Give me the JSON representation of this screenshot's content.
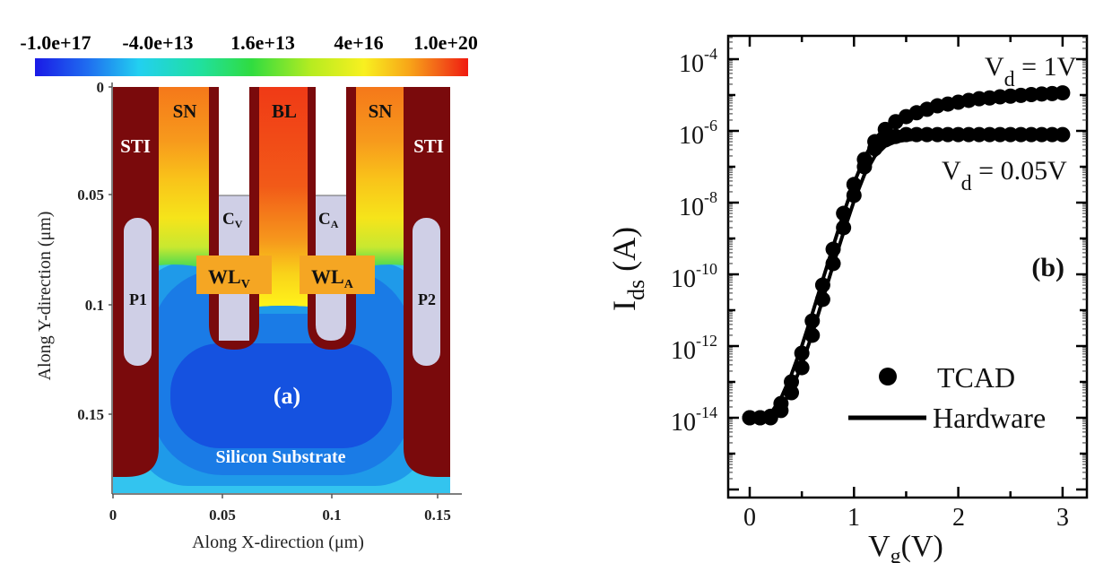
{
  "chart_data": [
    {
      "type": "heatmap",
      "panel_label": "(a)",
      "xlabel": "Along X-direction (μm)",
      "ylabel": "Along Y-direction (μm)",
      "xticks": [
        "0",
        "0.05",
        "0.1",
        "0.15"
      ],
      "yticks": [
        "0",
        "0.05",
        "0.1",
        "0.15"
      ],
      "xlim": [
        0,
        0.155
      ],
      "ylim": [
        0.186,
        0
      ],
      "colorbar": {
        "ticks": [
          "-1.0e+17",
          "-4.0e+13",
          "1.6e+13",
          "4e+16",
          "1.0e+20"
        ],
        "colors": [
          "#1a1ae6",
          "#1f8cf0",
          "#22e0f0",
          "#22e060",
          "#b8ec20",
          "#f8f020",
          "#f8b818",
          "#f26c18",
          "#f02010"
        ]
      },
      "regions": {
        "sti_left": "STI",
        "sti_right": "STI",
        "sn_left": "SN",
        "sn_right": "SN",
        "bl": "BL",
        "cv": "C",
        "cv_sub": "V",
        "ca": "C",
        "ca_sub": "A",
        "wlv": "WL",
        "wlv_sub": "V",
        "wla": "WL",
        "wla_sub": "A",
        "p1": "P1",
        "p2": "P2",
        "substrate": "Silicon Substrate"
      }
    },
    {
      "type": "scatter",
      "panel_label": "(b)",
      "xlabel": "V",
      "xlabel_sub": "g",
      "xlabel_unit": "(V)",
      "ylabel": "I",
      "ylabel_sub": "ds",
      "ylabel_unit": " (A)",
      "xlim": [
        -0.2,
        3.2
      ],
      "ylim": [
        6.3e-17,
        0.00045
      ],
      "yscale": "log",
      "xticks": [
        "0",
        "1",
        "2",
        "3"
      ],
      "yticks": [
        {
          "base": "10",
          "exp": "-4"
        },
        {
          "base": "10",
          "exp": "-6"
        },
        {
          "base": "10",
          "exp": "-8"
        },
        {
          "base": "10",
          "exp": "-10"
        },
        {
          "base": "10",
          "exp": "-12"
        },
        {
          "base": "10",
          "exp": "-14"
        }
      ],
      "annotations": {
        "vd1": {
          "v": "V",
          "sub": "d",
          "rest": " = 1V"
        },
        "vd005": {
          "v": "V",
          "sub": "d",
          "rest": " = 0.05V"
        }
      },
      "legend": {
        "placement": "bottom-right",
        "tcad": "TCAD",
        "hardware": "Hardware"
      },
      "x": [
        0,
        0.1,
        0.2,
        0.3,
        0.4,
        0.5,
        0.6,
        0.7,
        0.8,
        0.9,
        1.0,
        1.1,
        1.2,
        1.3,
        1.4,
        1.5,
        1.6,
        1.7,
        1.8,
        1.9,
        2.0,
        2.1,
        2.2,
        2.3,
        2.4,
        2.5,
        2.6,
        2.7,
        2.8,
        2.9,
        3.0
      ],
      "series": [
        {
          "kind": "TCAD",
          "condition": "Vd = 1V",
          "values": [
            1e-14,
            1e-14,
            1.1e-14,
            2.5e-14,
            1e-13,
            6.3e-13,
            5e-12,
            5e-11,
            5e-10,
            5e-09,
            3.2e-08,
            1.6e-07,
            5e-07,
            1.1e-06,
            1.8e-06,
            2.5e-06,
            3.2e-06,
            4e-06,
            5e-06,
            5.6e-06,
            6.3e-06,
            7.1e-06,
            7.9e-06,
            8.3e-06,
            8.9e-06,
            9.3e-06,
            9.8e-06,
            1.03e-05,
            1.07e-05,
            1.1e-05,
            1.15e-05
          ]
        },
        {
          "kind": "TCAD",
          "condition": "Vd = 0.05V",
          "values": [
            1e-14,
            1e-14,
            1e-14,
            1.6e-14,
            5e-14,
            2.5e-13,
            2e-12,
            2e-11,
            2e-10,
            2e-09,
            1.6e-08,
            1e-07,
            3.2e-07,
            5.6e-07,
            7e-07,
            7.9e-07,
            7.9e-07,
            7.9e-07,
            7.9e-07,
            7.9e-07,
            7.9e-07,
            7.9e-07,
            7.9e-07,
            7.9e-07,
            7.9e-07,
            7.9e-07,
            7.9e-07,
            7.9e-07,
            7.9e-07,
            7.9e-07,
            7.9e-07
          ]
        },
        {
          "kind": "Hardware",
          "condition": "Vd = 1V",
          "values": [
            1e-14,
            1e-14,
            1.3e-14,
            3.5e-14,
            1.6e-13,
            1e-12,
            8e-12,
            7e-11,
            6e-10,
            5e-09,
            3.5e-08,
            1.8e-07,
            6e-07,
            1.2e-06,
            1.8e-06,
            2.5e-06,
            3.2e-06,
            4e-06,
            4.8e-06,
            5.5e-06,
            6.2e-06,
            7e-06,
            7.6e-06,
            8.2e-06,
            8.7e-06,
            9.2e-06,
            9.7e-06,
            1.02e-05,
            1.06e-05,
            1.1e-05,
            1.14e-05
          ]
        },
        {
          "kind": "Hardware",
          "condition": "Vd = 0.05V",
          "values": [
            1e-14,
            1e-14,
            1e-14,
            1.8e-14,
            6e-14,
            3e-13,
            2.2e-12,
            2e-11,
            1.8e-10,
            1.5e-09,
            1.1e-08,
            6e-08,
            2e-07,
            3.8e-07,
            5e-07,
            5.6e-07,
            6e-07,
            6.2e-07,
            6.3e-07,
            6.3e-07,
            6.3e-07,
            6.3e-07,
            6.3e-07,
            6.3e-07,
            6.3e-07,
            6.3e-07,
            6.3e-07,
            6.3e-07,
            6.3e-07,
            6.3e-07,
            6.3e-07
          ]
        }
      ]
    }
  ]
}
